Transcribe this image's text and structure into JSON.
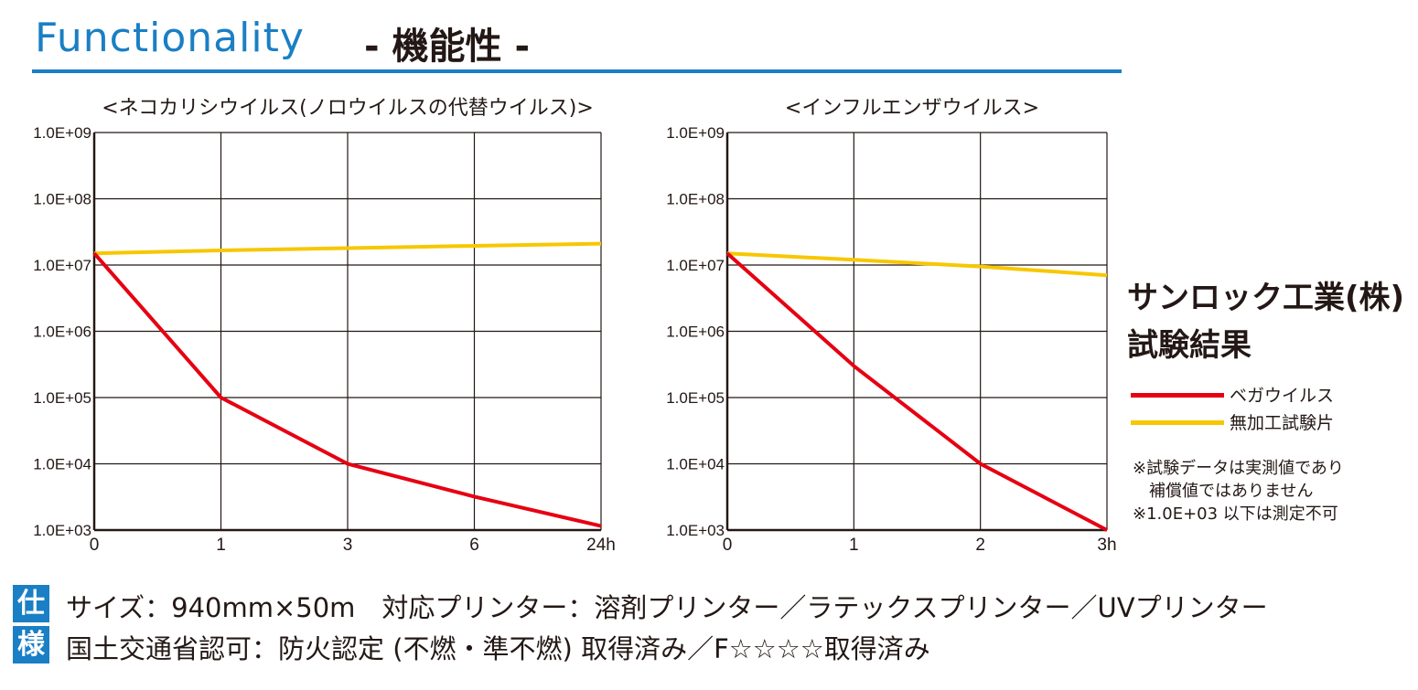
{
  "header": {
    "title_en": "Functionality",
    "title_jp": "- 機能性 -"
  },
  "side": {
    "title_line1": "サンロック工業(株)",
    "title_line2": "試験結果",
    "legend": [
      {
        "label": "ベガウイルス",
        "color": "#e60012"
      },
      {
        "label": "無加工試験片",
        "color": "#f7c700"
      }
    ],
    "notes": [
      "※試験データは実測値であり",
      "　補償値ではありません",
      "※1.0E+03 以下は測定不可"
    ]
  },
  "spec": {
    "badge_top": "仕",
    "badge_bottom": "様",
    "line1": "サイズ：940mm×50m　対応プリンター：溶剤プリンター／ラテックスプリンター／UVプリンター",
    "line2": "国土交通省認可：防火認定 (不燃・準不燃) 取得済み／F☆☆☆☆取得済み"
  },
  "colors": {
    "accent": "#1a7fc4",
    "vega": "#e60012",
    "control": "#f7c700"
  },
  "chart_data": [
    {
      "type": "line",
      "title": "<ネコカリシウイルス(ノロウイルスの代替ウイルス)>",
      "categories": [
        "0",
        "1",
        "3",
        "6",
        "24h"
      ],
      "y_scale": "log10",
      "ylim": [
        1000,
        1000000000
      ],
      "y_ticks": [
        "1.0E+09",
        "1.0E+08",
        "1.0E+07",
        "1.0E+06",
        "1.0E+05",
        "1.0E+04",
        "1.0E+03"
      ],
      "grid": true,
      "series": [
        {
          "name": "無加工試験片",
          "color": "#f7c700",
          "values": [
            15000000,
            16600000,
            18000000,
            19500000,
            21000000
          ]
        },
        {
          "name": "ベガウイルス",
          "color": "#e60012",
          "values": [
            15000000,
            100000,
            10000,
            3200,
            1150
          ]
        }
      ]
    },
    {
      "type": "line",
      "title": "<インフルエンザウイルス>",
      "categories": [
        "0",
        "1",
        "2",
        "3h"
      ],
      "y_scale": "log10",
      "ylim": [
        1000,
        1000000000
      ],
      "y_ticks": [
        "1.0E+09",
        "1.0E+08",
        "1.0E+07",
        "1.0E+06",
        "1.0E+05",
        "1.0E+04",
        "1.0E+03"
      ],
      "grid": true,
      "series": [
        {
          "name": "無加工試験片",
          "color": "#f7c700",
          "values": [
            15000000,
            12000000,
            9500000,
            7000000
          ]
        },
        {
          "name": "ベガウイルス",
          "color": "#e60012",
          "values": [
            15000000,
            300000,
            10000,
            1000
          ]
        }
      ]
    }
  ]
}
